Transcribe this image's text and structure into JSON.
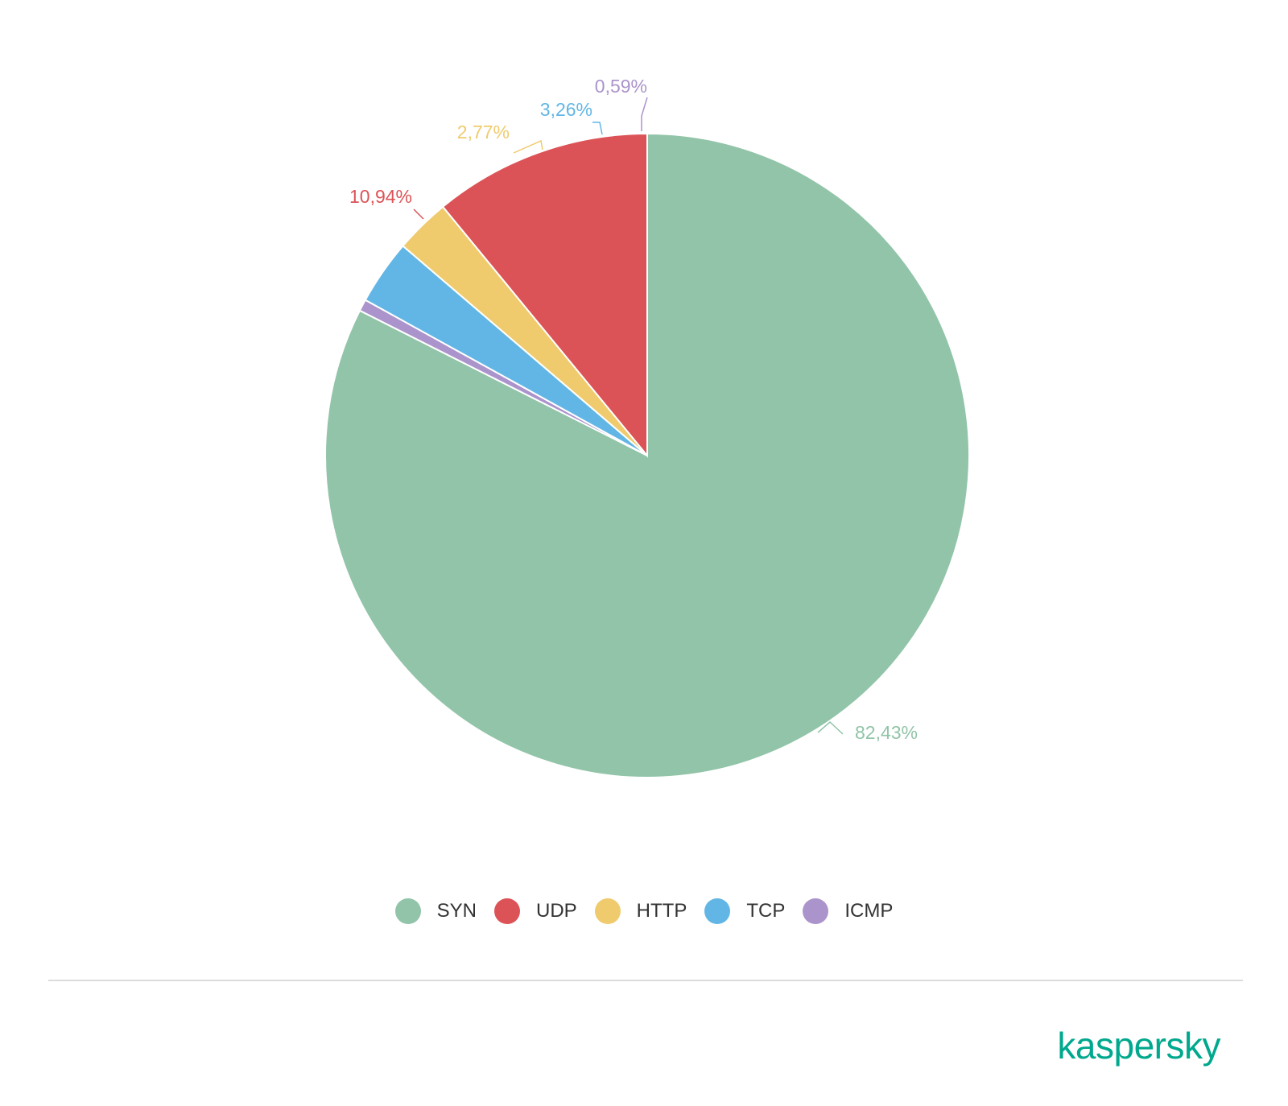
{
  "chart_data": {
    "type": "pie",
    "title": "",
    "categories": [
      "SYN",
      "UDP",
      "HTTP",
      "TCP",
      "ICMP"
    ],
    "values": [
      82.43,
      10.94,
      2.77,
      3.26,
      0.59
    ],
    "labels": [
      "82,43%",
      "10,94%",
      "2,77%",
      "3,26%",
      "0,59%"
    ],
    "colors": [
      "#91c4a8",
      "#dc5357",
      "#efcb6d",
      "#62b6e5",
      "#ab94cb"
    ],
    "start_angle": "12 o'clock",
    "direction": "clockwise",
    "legend_position": "bottom"
  },
  "legend": {
    "items": [
      {
        "label": "SYN",
        "color": "#91c4a8"
      },
      {
        "label": "UDP",
        "color": "#dc5357"
      },
      {
        "label": "HTTP",
        "color": "#efcb6d"
      },
      {
        "label": "TCP",
        "color": "#62b6e5"
      },
      {
        "label": "ICMP",
        "color": "#ab94cb"
      }
    ]
  },
  "brand": {
    "logo_text": "kaspersky",
    "color": "#00a88e"
  }
}
